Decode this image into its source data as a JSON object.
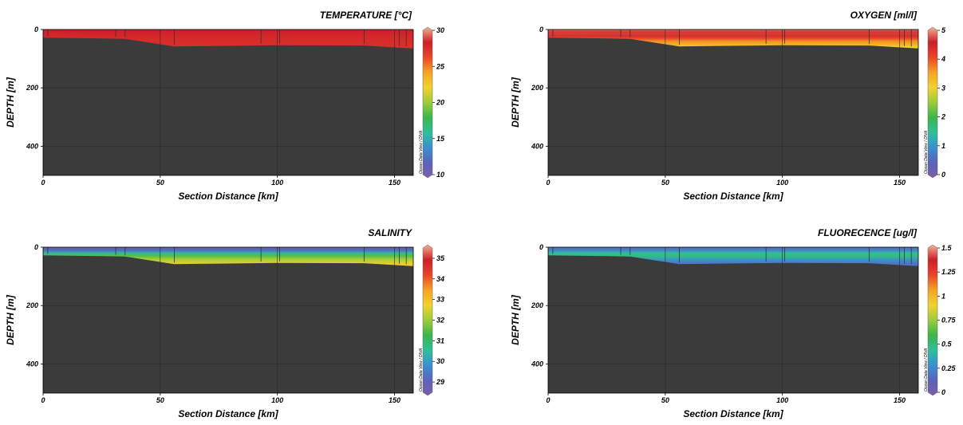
{
  "colorscale": [
    "#7b5fa9",
    "#5b63b8",
    "#3a8fd0",
    "#2fbf9a",
    "#3cb54a",
    "#9ccc3a",
    "#f2d22e",
    "#f4a323",
    "#e8452a",
    "#cc1f2a",
    "#f1b393"
  ],
  "terrain_color": "#3b3b3b",
  "watermark": "Ocean Data View / DIVA",
  "chart_data": [
    {
      "id": "temperature",
      "type": "heatmap",
      "title": "TEMPERATURE [°C]",
      "xlabel": "Section Distance [km]",
      "ylabel": "DEPTH [m]",
      "xlim": [
        0,
        158
      ],
      "ylim": [
        500,
        0
      ],
      "xticks": [
        0,
        50,
        100,
        150
      ],
      "yticks": [
        0,
        200,
        400
      ],
      "colorbar": {
        "min": 10,
        "max": 30,
        "ticks": [
          10,
          15,
          20,
          25,
          30
        ]
      },
      "stations_km": [
        2,
        31,
        35,
        56,
        93,
        101,
        137,
        152,
        155
      ],
      "bathymetry": [
        [
          0,
          28
        ],
        [
          35,
          32
        ],
        [
          56,
          58
        ],
        [
          100,
          54
        ],
        [
          137,
          55
        ],
        [
          158,
          65
        ]
      ],
      "profile_depths": [
        0,
        10,
        20,
        30,
        40,
        50,
        60,
        70
      ],
      "profile_values": [
        28,
        27.8,
        27.6,
        27.4,
        27.3,
        27.2,
        27.1,
        27.0
      ]
    },
    {
      "id": "oxygen",
      "type": "heatmap",
      "title": "OXYGEN [ml/l]",
      "xlabel": "Section Distance [km]",
      "ylabel": "DEPTH [m]",
      "xlim": [
        0,
        158
      ],
      "ylim": [
        500,
        0
      ],
      "xticks": [
        0,
        50,
        100,
        150
      ],
      "yticks": [
        0,
        200,
        400
      ],
      "colorbar": {
        "min": 0,
        "max": 5,
        "ticks": [
          0,
          1,
          2,
          3,
          4,
          5
        ]
      },
      "stations_km": [
        2,
        31,
        35,
        56,
        93,
        101,
        137,
        152,
        155
      ],
      "bathymetry": [
        [
          0,
          28
        ],
        [
          35,
          32
        ],
        [
          56,
          58
        ],
        [
          100,
          54
        ],
        [
          137,
          55
        ],
        [
          158,
          65
        ]
      ],
      "profile_depths": [
        0,
        8,
        15,
        22,
        30,
        40,
        50,
        60,
        70
      ],
      "profile_values": [
        4.8,
        4.2,
        4.6,
        4.3,
        4.0,
        3.6,
        3.4,
        3.0,
        2.5
      ]
    },
    {
      "id": "salinity",
      "type": "heatmap",
      "title": "SALINITY",
      "xlabel": "Section Distance [km]",
      "ylabel": "DEPTH [m]",
      "xlim": [
        0,
        158
      ],
      "ylim": [
        500,
        0
      ],
      "xticks": [
        0,
        50,
        100,
        150
      ],
      "yticks": [
        0,
        200,
        400
      ],
      "colorbar": {
        "min": 28.5,
        "max": 35.5,
        "ticks": [
          29,
          30,
          31,
          32,
          33,
          34,
          35
        ]
      },
      "stations_km": [
        2,
        31,
        35,
        56,
        93,
        101,
        137,
        152,
        155
      ],
      "bathymetry": [
        [
          0,
          28
        ],
        [
          35,
          32
        ],
        [
          56,
          58
        ],
        [
          100,
          54
        ],
        [
          137,
          55
        ],
        [
          158,
          65
        ]
      ],
      "profile_depths": [
        0,
        10,
        20,
        30,
        40,
        50,
        60,
        70
      ],
      "profile_values": [
        29.0,
        29.3,
        30.5,
        31.5,
        32.0,
        32.4,
        32.8,
        33.1
      ]
    },
    {
      "id": "fluorescence",
      "type": "heatmap",
      "title": "FLUORECENCE [ug/l]",
      "xlabel": "Section Distance [km]",
      "ylabel": "DEPTH [m]",
      "xlim": [
        0,
        158
      ],
      "ylim": [
        500,
        0
      ],
      "xticks": [
        0,
        50,
        100,
        150
      ],
      "yticks": [
        0,
        200,
        400
      ],
      "colorbar": {
        "min": 0,
        "max": 1.5,
        "ticks": [
          0,
          0.25,
          0.5,
          0.75,
          1,
          1.25,
          1.5
        ]
      },
      "stations_km": [
        2,
        31,
        35,
        56,
        93,
        101,
        137,
        152,
        155
      ],
      "bathymetry": [
        [
          0,
          28
        ],
        [
          35,
          32
        ],
        [
          56,
          58
        ],
        [
          100,
          54
        ],
        [
          137,
          55
        ],
        [
          158,
          65
        ]
      ],
      "profile_depths": [
        0,
        10,
        20,
        30,
        40,
        50,
        60,
        70
      ],
      "profile_values": [
        0.2,
        0.25,
        0.45,
        0.5,
        0.35,
        0.25,
        0.2,
        0.15
      ]
    }
  ]
}
